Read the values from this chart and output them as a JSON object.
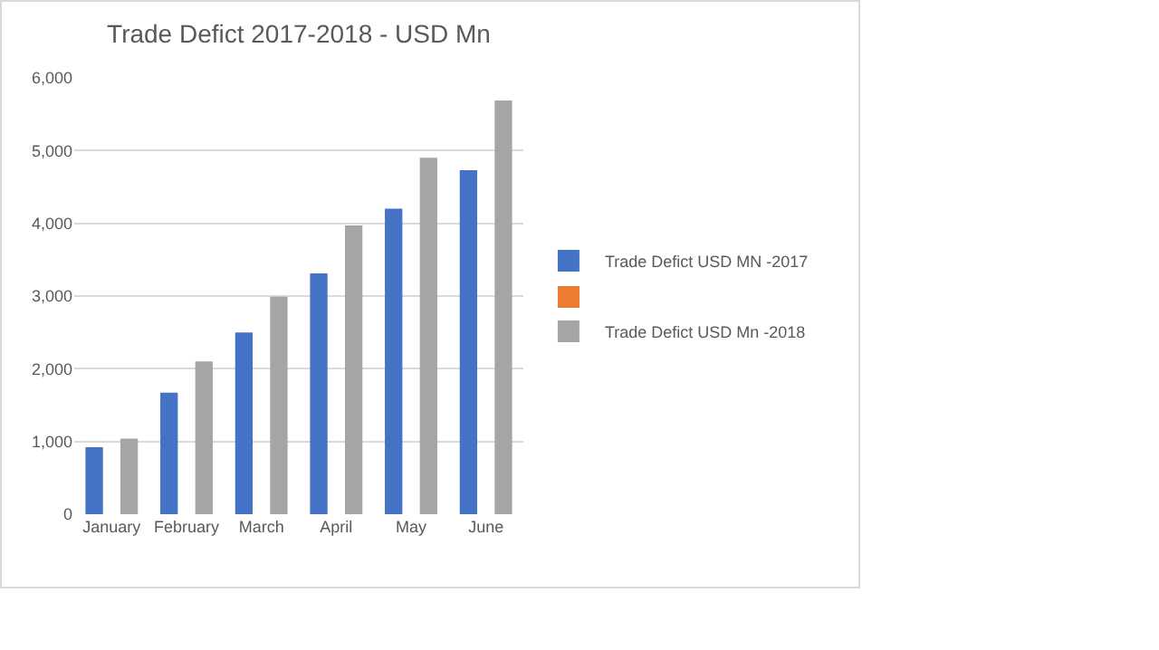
{
  "chart_data": {
    "type": "bar",
    "title": "Trade Defict 2017-2018 - USD Mn",
    "categories": [
      "January",
      "February",
      "March",
      "April",
      "May",
      "June"
    ],
    "series": [
      {
        "name": "Trade Defict USD MN -2017",
        "color": "#4472c4",
        "values": [
          920,
          1670,
          2500,
          3310,
          4200,
          4730
        ]
      },
      {
        "color": "#ed7d31",
        "values": [
          null,
          null,
          null,
          null,
          null,
          null
        ]
      },
      {
        "name": "Trade Defict USD Mn -2018",
        "color": "#a5a5a5",
        "values": [
          1040,
          2100,
          2990,
          3970,
          4900,
          5690
        ]
      }
    ],
    "ylim": [
      0,
      6000
    ],
    "yticks": [
      {
        "value": 0,
        "label": "0"
      },
      {
        "value": 1000,
        "label": "1,000"
      },
      {
        "value": 2000,
        "label": "2,000"
      },
      {
        "value": 3000,
        "label": "3,000"
      },
      {
        "value": 4000,
        "label": "4,000"
      },
      {
        "value": 5000,
        "label": "5,000"
      },
      {
        "value": 6000,
        "label": "6,000"
      }
    ],
    "grid": "y",
    "legend": "right"
  }
}
